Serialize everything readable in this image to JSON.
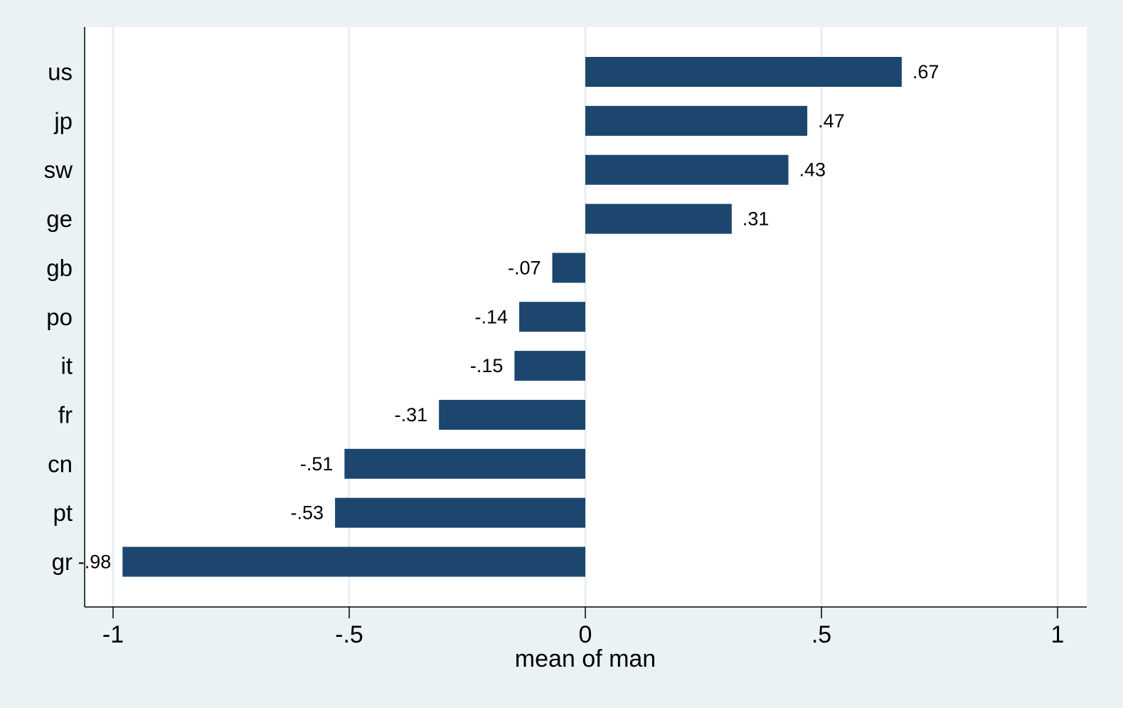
{
  "chart_data": {
    "type": "bar",
    "orientation": "horizontal",
    "categories": [
      "us",
      "jp",
      "sw",
      "ge",
      "gb",
      "po",
      "it",
      "fr",
      "cn",
      "pt",
      "gr"
    ],
    "values": [
      0.67,
      0.47,
      0.43,
      0.31,
      -0.07,
      -0.14,
      -0.15,
      -0.31,
      -0.51,
      -0.53,
      -0.98
    ],
    "value_labels": [
      ".67",
      ".47",
      ".43",
      ".31",
      "-.07",
      "-.14",
      "-.15",
      "-.31",
      "-.51",
      "-.53",
      "-.98"
    ],
    "xlabel": "mean of man",
    "xlim": [
      -1.06,
      1.06
    ],
    "xticks": [
      -1,
      -0.5,
      0,
      0.5,
      1
    ],
    "xtick_labels": [
      "-1",
      "-.5",
      "0",
      ".5",
      "1"
    ],
    "grid": true,
    "colors": {
      "bar": "#1c466e",
      "plot_background": "#ffffff",
      "outer_background": "#eaf2f3",
      "gridline": "#e6eeef",
      "axis": "#000000"
    }
  }
}
